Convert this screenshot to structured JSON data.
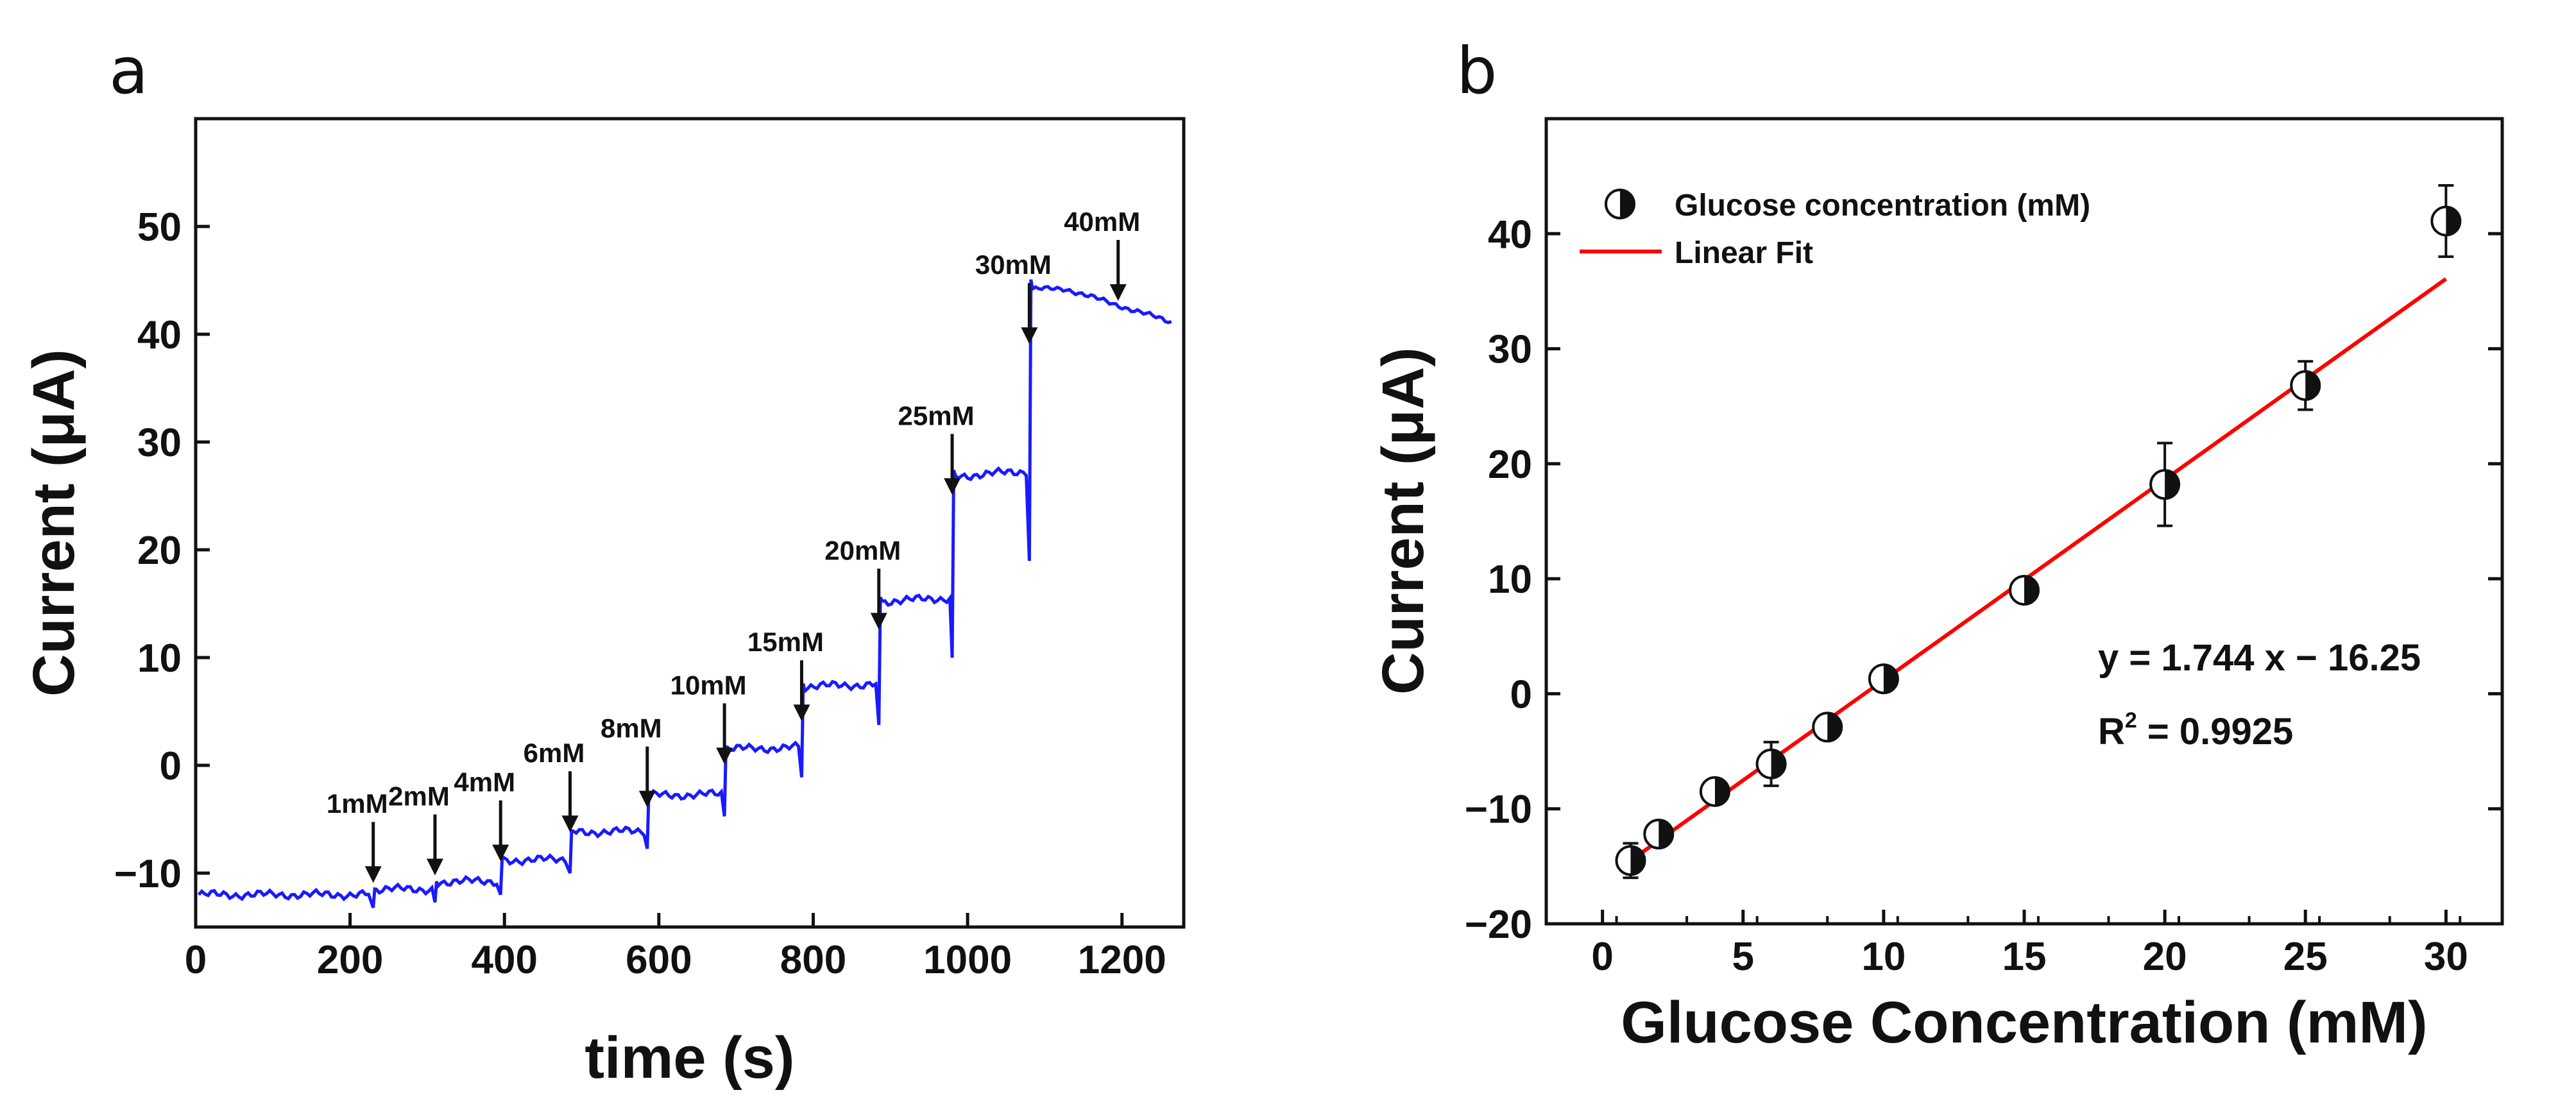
{
  "panels": {
    "a": "a",
    "b": "b"
  },
  "chart_data": [
    {
      "type": "line",
      "panel": "a",
      "title": "",
      "xlabel": "time (s)",
      "ylabel": "Current (μA)",
      "xlim": [
        0,
        1280
      ],
      "ylim": [
        -15,
        60
      ],
      "xticks": [
        0,
        200,
        400,
        600,
        800,
        1000,
        1200
      ],
      "yticks": [
        -10,
        0,
        10,
        20,
        30,
        40,
        50
      ],
      "ytick_labels": [
        "−10",
        "0",
        "10",
        "20",
        "30",
        "40",
        "50"
      ],
      "line_color": "#1a1aff",
      "steps": [
        {
          "t": 0,
          "level": -12
        },
        {
          "t": 230,
          "level": -11.5
        },
        {
          "t": 310,
          "level": -10.8
        },
        {
          "t": 395,
          "level": -8.8
        },
        {
          "t": 485,
          "level": -6.2
        },
        {
          "t": 585,
          "level": -2.8
        },
        {
          "t": 685,
          "level": 1.5
        },
        {
          "t": 785,
          "level": 7.3
        },
        {
          "t": 885,
          "level": 15.2
        },
        {
          "t": 980,
          "level": 26.8
        },
        {
          "t": 1080,
          "level": 44.2
        }
      ],
      "end": {
        "t": 1270,
        "level": 41
      },
      "annotations": [
        {
          "label": "1mM",
          "t": 230,
          "y": -11.5
        },
        {
          "label": "2mM",
          "t": 310,
          "y": -10.8
        },
        {
          "label": "4mM",
          "t": 395,
          "y": -9.5
        },
        {
          "label": "6mM",
          "t": 485,
          "y": -6.8
        },
        {
          "label": "8mM",
          "t": 585,
          "y": -4.5
        },
        {
          "label": "10mM",
          "t": 685,
          "y": -0.5
        },
        {
          "label": "15mM",
          "t": 785,
          "y": 3.5
        },
        {
          "label": "20mM",
          "t": 885,
          "y": 12
        },
        {
          "label": "25mM",
          "t": 980,
          "y": 24.5
        },
        {
          "label": "30mM",
          "t": 1080,
          "y": 38.5
        },
        {
          "label": "40mM",
          "t": 1195,
          "y": 42.5
        }
      ]
    },
    {
      "type": "scatter",
      "panel": "b",
      "title": "",
      "xlabel": "Glucose Concentration (mM)",
      "ylabel": "Current (μA)",
      "xlim": [
        -2,
        32
      ],
      "ylim": [
        -20,
        50
      ],
      "xticks": [
        0,
        5,
        10,
        15,
        20,
        25,
        30
      ],
      "yticks": [
        -20,
        -10,
        0,
        10,
        20,
        30,
        40
      ],
      "ytick_labels": [
        "−20",
        "−10",
        "0",
        "10",
        "20",
        "30",
        "40"
      ],
      "points": [
        {
          "x": 1,
          "y": -14.5,
          "err": 1.5
        },
        {
          "x": 2,
          "y": -12.2,
          "err": 0.8
        },
        {
          "x": 4,
          "y": -8.5,
          "err": 0.8
        },
        {
          "x": 6,
          "y": -6.1,
          "err": 1.9
        },
        {
          "x": 8,
          "y": -2.9,
          "err": 0.7
        },
        {
          "x": 10,
          "y": 1.3,
          "err": 1.0
        },
        {
          "x": 15,
          "y": 9.0,
          "err": 0.8
        },
        {
          "x": 20,
          "y": 18.2,
          "err": 3.6
        },
        {
          "x": 25,
          "y": 26.8,
          "err": 2.1
        },
        {
          "x": 30,
          "y": 41.1,
          "err": 3.1
        }
      ],
      "fit": {
        "slope": 1.744,
        "intercept": -16.25,
        "x_range": [
          1,
          30
        ],
        "color": "#ff0000"
      },
      "legend": {
        "position": "top-left",
        "entries": [
          "Glucose concentration (mM)",
          "Linear Fit"
        ]
      },
      "equation_text": "y = 1.744 x − 16.25",
      "r2_prefix": "R",
      "r2_sup": "2",
      "r2_suffix": " = 0.9925"
    }
  ]
}
